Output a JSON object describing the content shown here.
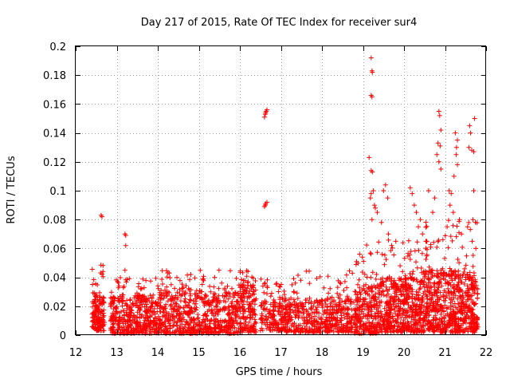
{
  "chart_data": {
    "type": "scatter",
    "title": "Day 217 of 2015, Rate Of TEC Index for receiver sur4",
    "xlabel": "GPS time / hours",
    "ylabel": "ROTI / TECUs",
    "xlim": [
      12,
      22
    ],
    "ylim": [
      0,
      0.2
    ],
    "grid": true,
    "marker": "+",
    "series_color": "#ff0000",
    "x_ticks": [
      "12",
      "13",
      "14",
      "15",
      "16",
      "17",
      "18",
      "19",
      "20",
      "21",
      "22"
    ],
    "y_ticks": [
      "0",
      "0.02",
      "0.04",
      "0.06",
      "0.08",
      "0.1",
      "0.12",
      "0.14",
      "0.16",
      "0.18",
      "0.2"
    ],
    "series": [
      {
        "name": "ROTI",
        "segments": [
          {
            "x": [
              12.4,
              12.7
            ],
            "lo": 0.003,
            "hi": 0.03,
            "n": 150,
            "spike": 0.05
          },
          {
            "x": [
              12.85,
              14.0
            ],
            "lo": 0.001,
            "hi": 0.028,
            "n": 420,
            "spike": 0.04
          },
          {
            "x": [
              14.0,
              16.0
            ],
            "lo": 0.001,
            "hi": 0.03,
            "n": 650,
            "spike": 0.045
          },
          {
            "x": [
              16.0,
              16.4
            ],
            "lo": 0.002,
            "hi": 0.035,
            "n": 170,
            "spike": 0.045
          },
          {
            "x": [
              16.5,
              17.1
            ],
            "lo": 0.003,
            "hi": 0.025,
            "n": 170,
            "spike": 0.04
          },
          {
            "x": [
              17.1,
              18.8
            ],
            "lo": 0.002,
            "hi": 0.026,
            "n": 480,
            "spike": 0.045
          },
          {
            "x": [
              18.8,
              19.4
            ],
            "lo": 0.001,
            "hi": 0.035,
            "n": 260,
            "spike": 0.065
          },
          {
            "x": [
              19.4,
              20.4
            ],
            "lo": 0.002,
            "hi": 0.04,
            "n": 480,
            "spike": 0.07
          },
          {
            "x": [
              20.4,
              21.8
            ],
            "lo": 0.002,
            "hi": 0.045,
            "n": 720,
            "spike": 0.08
          }
        ],
        "points": [
          [
            12.62,
            0.083
          ],
          [
            12.64,
            0.082
          ],
          [
            13.2,
            0.07
          ],
          [
            13.22,
            0.069
          ],
          [
            13.22,
            0.062
          ],
          [
            13.2,
            0.045
          ],
          [
            16.6,
            0.151
          ],
          [
            16.62,
            0.153
          ],
          [
            16.64,
            0.155
          ],
          [
            16.66,
            0.156
          ],
          [
            16.63,
            0.154
          ],
          [
            16.6,
            0.089
          ],
          [
            16.63,
            0.091
          ],
          [
            16.66,
            0.092
          ],
          [
            16.62,
            0.09
          ],
          [
            19.2,
            0.192
          ],
          [
            19.22,
            0.183
          ],
          [
            19.23,
            0.182
          ],
          [
            19.2,
            0.166
          ],
          [
            19.22,
            0.165
          ],
          [
            19.15,
            0.123
          ],
          [
            19.2,
            0.114
          ],
          [
            19.23,
            0.113
          ],
          [
            19.25,
            0.1
          ],
          [
            19.2,
            0.098
          ],
          [
            19.18,
            0.095
          ],
          [
            19.28,
            0.09
          ],
          [
            19.3,
            0.088
          ],
          [
            19.22,
            0.08
          ],
          [
            19.35,
            0.085
          ],
          [
            19.5,
            0.1
          ],
          [
            19.55,
            0.104
          ],
          [
            19.6,
            0.095
          ],
          [
            19.45,
            0.078
          ],
          [
            19.62,
            0.07
          ],
          [
            19.7,
            0.062
          ],
          [
            19.8,
            0.065
          ],
          [
            20.15,
            0.102
          ],
          [
            20.2,
            0.098
          ],
          [
            20.25,
            0.09
          ],
          [
            20.3,
            0.085
          ],
          [
            20.35,
            0.075
          ],
          [
            20.4,
            0.08
          ],
          [
            20.45,
            0.07
          ],
          [
            20.55,
            0.065
          ],
          [
            20.6,
            0.1
          ],
          [
            20.85,
            0.155
          ],
          [
            20.87,
            0.152
          ],
          [
            20.9,
            0.142
          ],
          [
            20.88,
            0.131
          ],
          [
            20.83,
            0.133
          ],
          [
            20.8,
            0.125
          ],
          [
            20.85,
            0.12
          ],
          [
            20.9,
            0.115
          ],
          [
            20.75,
            0.095
          ],
          [
            20.7,
            0.085
          ],
          [
            21.1,
            0.1
          ],
          [
            21.15,
            0.098
          ],
          [
            21.12,
            0.09
          ],
          [
            21.2,
            0.085
          ],
          [
            21.05,
            0.075
          ],
          [
            21.25,
            0.14
          ],
          [
            21.3,
            0.135
          ],
          [
            21.28,
            0.13
          ],
          [
            21.27,
            0.125
          ],
          [
            21.3,
            0.118
          ],
          [
            21.22,
            0.11
          ],
          [
            21.35,
            0.08
          ],
          [
            21.4,
            0.07
          ],
          [
            21.6,
            0.145
          ],
          [
            21.62,
            0.14
          ],
          [
            21.65,
            0.128
          ],
          [
            21.7,
            0.127
          ],
          [
            21.58,
            0.13
          ],
          [
            21.72,
            0.15
          ],
          [
            21.7,
            0.1
          ],
          [
            21.68,
            0.08
          ],
          [
            21.66,
            0.065
          ],
          [
            21.55,
            0.075
          ],
          [
            21.75,
            0.06
          ]
        ]
      }
    ]
  }
}
